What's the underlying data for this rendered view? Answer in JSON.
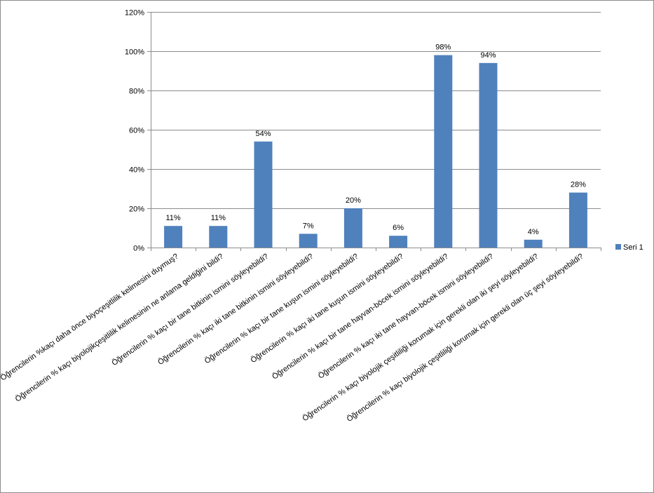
{
  "chart_data": {
    "type": "bar",
    "categories": [
      "Öğrencilerin %kaçı daha önce biyoçeşitlilik kelimesini duymuş?",
      "Öğrencilerin % kaçı biyolojikçeşitlilik kelimesinin ne anlama geldiğini bildi?",
      "Öğrencilerin % kaçı bir tane bitkinin ismini söyleyebildi?",
      "Öğrencilerin % kaçı iki tane bitkinin ismini söyleyebildi?",
      "Öğrencilerin % kaçı bir tane kuşun ismini söyleyebildi?",
      "Öğrencilerin % kaçı iki tane kuşun ismini söyleyebildi?",
      "Öğrencilerin % kaçı bir tane hayvan-böcek ismini söyleyebildi?",
      "Öğrencilerin % kaçı iki tane hayvan-böcek ismini söyleyebildi?",
      "Öğrencilerin % kaçı biyolojik çeşitliliği korumak için gerekli olan iki şeyi söyleyebildi?",
      "Öğrencilerin % kaçı biyolojik çeşitliliği korumak için gerekli olan üç şeyi söyleyebildi?"
    ],
    "series": [
      {
        "name": "Seri 1",
        "values": [
          11,
          11,
          54,
          7,
          20,
          6,
          98,
          94,
          4,
          28
        ],
        "data_labels": [
          "11%",
          "11%",
          "54%",
          "7%",
          "20%",
          "6%",
          "98%",
          "94%",
          "4%",
          "28%"
        ]
      }
    ],
    "y_ticks": [
      0,
      20,
      40,
      60,
      80,
      100,
      120
    ],
    "y_tick_labels": [
      "0%",
      "20%",
      "40%",
      "60%",
      "80%",
      "100%",
      "120%"
    ],
    "ylim": [
      0,
      120
    ],
    "title": "",
    "xlabel": "",
    "ylabel": "",
    "grid": true,
    "legend_position": "right",
    "colors": {
      "bar": "#4f81bd",
      "grid": "#8c8c8c",
      "axis": "#8c8c8c"
    }
  }
}
